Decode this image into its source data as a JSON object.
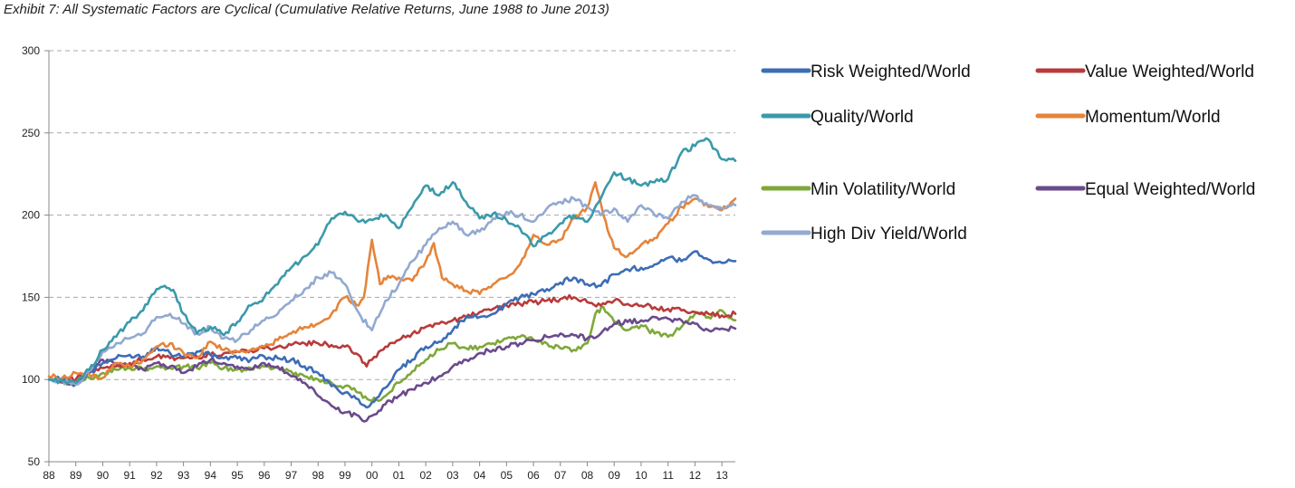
{
  "title": "Exhibit 7: All Systematic Factors are Cyclical (Cumulative Relative Returns, June 1988 to June 2013)",
  "chart_data": {
    "type": "line",
    "title": "Exhibit 7: All Systematic Factors are Cyclical (Cumulative Relative Returns, June 1988 to June 2013)",
    "xlabel": "",
    "ylabel": "",
    "ylim": [
      50,
      300
    ],
    "yticks": [
      50,
      100,
      150,
      200,
      250,
      300
    ],
    "xlim": [
      1988.0,
      2013.5
    ],
    "xticks": [
      1988,
      1989,
      1990,
      1991,
      1992,
      1993,
      1994,
      1995,
      1996,
      1997,
      1998,
      1999,
      2000,
      2001,
      2002,
      2003,
      2004,
      2005,
      2006,
      2007,
      2008,
      2009,
      2010,
      2011,
      2012,
      2013
    ],
    "xtick_labels": [
      "88",
      "89",
      "90",
      "91",
      "92",
      "93",
      "94",
      "95",
      "96",
      "97",
      "98",
      "99",
      "00",
      "01",
      "02",
      "03",
      "04",
      "05",
      "06",
      "07",
      "08",
      "09",
      "10",
      "11",
      "12",
      "13"
    ],
    "grid": "horizontal dashed",
    "legend_position": "right",
    "series": [
      {
        "name": "Risk Weighted/World",
        "color": "#3d6db5",
        "x": [
          1988.0,
          1988.5,
          1989.0,
          1989.5,
          1990.0,
          1990.5,
          1991.0,
          1991.5,
          1992.0,
          1992.5,
          1993.0,
          1993.5,
          1994.0,
          1994.5,
          1995.0,
          1995.5,
          1996.0,
          1996.5,
          1997.0,
          1997.5,
          1998.0,
          1998.5,
          1999.0,
          1999.5,
          1999.8,
          2000.0,
          2000.5,
          2001.0,
          2001.5,
          2002.0,
          2002.5,
          2003.0,
          2003.5,
          2004.0,
          2004.5,
          2005.0,
          2005.5,
          2006.0,
          2006.5,
          2007.0,
          2007.5,
          2008.0,
          2008.5,
          2009.0,
          2009.5,
          2010.0,
          2010.5,
          2011.0,
          2011.5,
          2012.0,
          2012.5,
          2013.0,
          2013.5
        ],
        "values": [
          100,
          101,
          97,
          104,
          110,
          113,
          115,
          114,
          120,
          116,
          114,
          117,
          115,
          113,
          113,
          112,
          114,
          113,
          112,
          108,
          104,
          96,
          92,
          88,
          83,
          86,
          95,
          106,
          112,
          120,
          123,
          130,
          138,
          138,
          140,
          146,
          150,
          152,
          155,
          159,
          162,
          158,
          157,
          164,
          167,
          168,
          170,
          174,
          172,
          178,
          173,
          171,
          172
        ]
      },
      {
        "name": "Value Weighted/World",
        "color": "#b83b3b",
        "x": [
          1988.0,
          1988.5,
          1989.0,
          1989.5,
          1990.0,
          1990.5,
          1991.0,
          1991.5,
          1992.0,
          1992.5,
          1993.0,
          1993.5,
          1994.0,
          1994.5,
          1995.0,
          1995.5,
          1996.0,
          1996.5,
          1997.0,
          1997.5,
          1998.0,
          1998.5,
          1999.0,
          1999.5,
          1999.8,
          2000.0,
          2000.5,
          2001.0,
          2001.5,
          2002.0,
          2002.5,
          2003.0,
          2003.5,
          2004.0,
          2004.5,
          2005.0,
          2005.5,
          2006.0,
          2006.5,
          2007.0,
          2007.5,
          2008.0,
          2008.5,
          2009.0,
          2009.5,
          2010.0,
          2010.5,
          2011.0,
          2011.5,
          2012.0,
          2012.5,
          2013.0,
          2013.5
        ],
        "values": [
          100,
          101,
          100,
          104,
          107,
          108,
          110,
          112,
          114,
          113,
          113,
          114,
          115,
          116,
          117,
          118,
          119,
          120,
          121,
          122,
          122,
          121,
          120,
          115,
          108,
          112,
          120,
          124,
          128,
          132,
          134,
          136,
          138,
          141,
          143,
          145,
          146,
          147,
          148,
          149,
          150,
          147,
          145,
          148,
          146,
          145,
          144,
          143,
          142,
          141,
          140,
          139,
          140
        ]
      },
      {
        "name": "Quality/World",
        "color": "#3a9aaa",
        "x": [
          1988.0,
          1988.5,
          1989.0,
          1989.5,
          1990.0,
          1990.5,
          1991.0,
          1991.5,
          1992.0,
          1992.3,
          1992.7,
          1993.0,
          1993.5,
          1994.0,
          1994.5,
          1995.0,
          1995.5,
          1996.0,
          1996.5,
          1997.0,
          1997.5,
          1998.0,
          1998.5,
          1999.0,
          1999.5,
          2000.0,
          2000.5,
          2001.0,
          2001.5,
          2002.0,
          2002.5,
          2003.0,
          2003.5,
          2004.0,
          2004.5,
          2005.0,
          2005.5,
          2006.0,
          2006.5,
          2007.0,
          2007.5,
          2008.0,
          2008.5,
          2009.0,
          2009.5,
          2010.0,
          2010.5,
          2011.0,
          2011.5,
          2012.0,
          2012.5,
          2013.0,
          2013.5
        ],
        "values": [
          100,
          99,
          98,
          106,
          118,
          126,
          135,
          142,
          155,
          157,
          152,
          140,
          128,
          132,
          127,
          135,
          145,
          150,
          158,
          168,
          175,
          182,
          198,
          202,
          196,
          197,
          200,
          192,
          205,
          218,
          212,
          220,
          208,
          198,
          201,
          197,
          192,
          181,
          188,
          195,
          200,
          196,
          210,
          226,
          222,
          218,
          220,
          222,
          238,
          242,
          246,
          234,
          233
        ]
      },
      {
        "name": "Momentum/World",
        "color": "#e5843a",
        "x": [
          1988.0,
          1988.5,
          1989.0,
          1989.5,
          1990.0,
          1990.5,
          1991.0,
          1991.5,
          1992.0,
          1992.5,
          1993.0,
          1993.5,
          1994.0,
          1994.5,
          1995.0,
          1995.5,
          1996.0,
          1996.5,
          1997.0,
          1997.5,
          1998.0,
          1998.5,
          1999.0,
          1999.5,
          1999.7,
          2000.0,
          2000.3,
          2000.6,
          2001.0,
          2001.5,
          2002.0,
          2002.3,
          2002.6,
          2003.0,
          2003.5,
          2004.0,
          2004.5,
          2005.0,
          2005.5,
          2006.0,
          2006.5,
          2007.0,
          2007.5,
          2008.0,
          2008.3,
          2008.6,
          2009.0,
          2009.5,
          2010.0,
          2010.5,
          2011.0,
          2011.5,
          2012.0,
          2012.5,
          2013.0,
          2013.5
        ],
        "values": [
          102,
          101,
          104,
          103,
          101,
          110,
          108,
          112,
          120,
          122,
          116,
          113,
          123,
          118,
          117,
          118,
          120,
          124,
          128,
          132,
          134,
          140,
          150,
          145,
          150,
          185,
          158,
          163,
          162,
          160,
          172,
          183,
          162,
          158,
          154,
          152,
          158,
          162,
          170,
          188,
          182,
          185,
          198,
          205,
          220,
          200,
          180,
          175,
          182,
          186,
          195,
          205,
          210,
          205,
          203,
          210
        ]
      },
      {
        "name": "Min Volatility/World",
        "color": "#7fa83a",
        "x": [
          1988.0,
          1988.5,
          1989.0,
          1989.5,
          1990.0,
          1990.5,
          1991.0,
          1991.5,
          1992.0,
          1992.5,
          1993.0,
          1993.5,
          1994.0,
          1994.5,
          1995.0,
          1995.5,
          1996.0,
          1996.5,
          1997.0,
          1997.5,
          1998.0,
          1998.5,
          1999.0,
          1999.5,
          2000.0,
          2000.5,
          2001.0,
          2001.5,
          2002.0,
          2002.5,
          2003.0,
          2003.5,
          2004.0,
          2004.5,
          2005.0,
          2005.5,
          2006.0,
          2006.5,
          2007.0,
          2007.5,
          2008.0,
          2008.3,
          2008.6,
          2009.0,
          2009.5,
          2010.0,
          2010.5,
          2011.0,
          2011.5,
          2012.0,
          2012.5,
          2013.0,
          2013.5
        ],
        "values": [
          100,
          99,
          97,
          101,
          104,
          106,
          107,
          106,
          108,
          107,
          108,
          107,
          110,
          107,
          106,
          107,
          108,
          107,
          105,
          102,
          100,
          98,
          96,
          92,
          87,
          90,
          98,
          105,
          112,
          118,
          122,
          119,
          120,
          122,
          125,
          126,
          124,
          122,
          119,
          118,
          122,
          140,
          144,
          135,
          130,
          133,
          128,
          126,
          132,
          140,
          138,
          142,
          136
        ]
      },
      {
        "name": "Equal Weighted/World",
        "color": "#6a4a8c",
        "x": [
          1988.0,
          1988.5,
          1989.0,
          1989.5,
          1990.0,
          1990.5,
          1991.0,
          1991.5,
          1992.0,
          1992.5,
          1993.0,
          1993.5,
          1994.0,
          1994.5,
          1995.0,
          1995.5,
          1996.0,
          1996.5,
          1997.0,
          1997.5,
          1998.0,
          1998.5,
          1999.0,
          1999.5,
          1999.8,
          2000.0,
          2000.5,
          2001.0,
          2001.5,
          2002.0,
          2002.5,
          2003.0,
          2003.5,
          2004.0,
          2004.5,
          2005.0,
          2005.5,
          2006.0,
          2006.5,
          2007.0,
          2007.5,
          2008.0,
          2008.5,
          2009.0,
          2009.5,
          2010.0,
          2010.5,
          2011.0,
          2011.5,
          2012.0,
          2012.5,
          2013.0,
          2013.5
        ],
        "values": [
          100,
          98,
          97,
          104,
          112,
          110,
          108,
          106,
          110,
          108,
          104,
          108,
          112,
          110,
          108,
          106,
          110,
          108,
          102,
          98,
          90,
          84,
          80,
          78,
          75,
          78,
          85,
          90,
          94,
          98,
          102,
          108,
          112,
          116,
          118,
          120,
          122,
          124,
          126,
          128,
          127,
          125,
          128,
          134,
          135,
          136,
          138,
          137,
          136,
          134,
          130,
          131,
          131
        ]
      },
      {
        "name": "High Div Yield/World",
        "color": "#92a9d0",
        "x": [
          1988.0,
          1988.5,
          1989.0,
          1989.5,
          1990.0,
          1990.5,
          1991.0,
          1991.5,
          1992.0,
          1992.5,
          1993.0,
          1993.5,
          1994.0,
          1994.5,
          1995.0,
          1995.5,
          1996.0,
          1996.5,
          1997.0,
          1997.5,
          1998.0,
          1998.5,
          1999.0,
          1999.3,
          1999.6,
          2000.0,
          2000.5,
          2001.0,
          2001.5,
          2002.0,
          2002.5,
          2003.0,
          2003.5,
          2004.0,
          2004.5,
          2005.0,
          2005.5,
          2006.0,
          2006.5,
          2007.0,
          2007.5,
          2008.0,
          2008.5,
          2009.0,
          2009.5,
          2010.0,
          2010.5,
          2011.0,
          2011.5,
          2012.0,
          2012.5,
          2013.0,
          2013.5
        ],
        "values": [
          100,
          99,
          97,
          105,
          117,
          122,
          125,
          128,
          138,
          140,
          134,
          128,
          132,
          125,
          124,
          130,
          136,
          140,
          148,
          155,
          162,
          165,
          158,
          146,
          138,
          130,
          148,
          158,
          172,
          182,
          192,
          196,
          188,
          190,
          198,
          202,
          200,
          196,
          204,
          208,
          210,
          205,
          200,
          204,
          196,
          206,
          200,
          198,
          208,
          212,
          206,
          204,
          206
        ]
      }
    ]
  }
}
